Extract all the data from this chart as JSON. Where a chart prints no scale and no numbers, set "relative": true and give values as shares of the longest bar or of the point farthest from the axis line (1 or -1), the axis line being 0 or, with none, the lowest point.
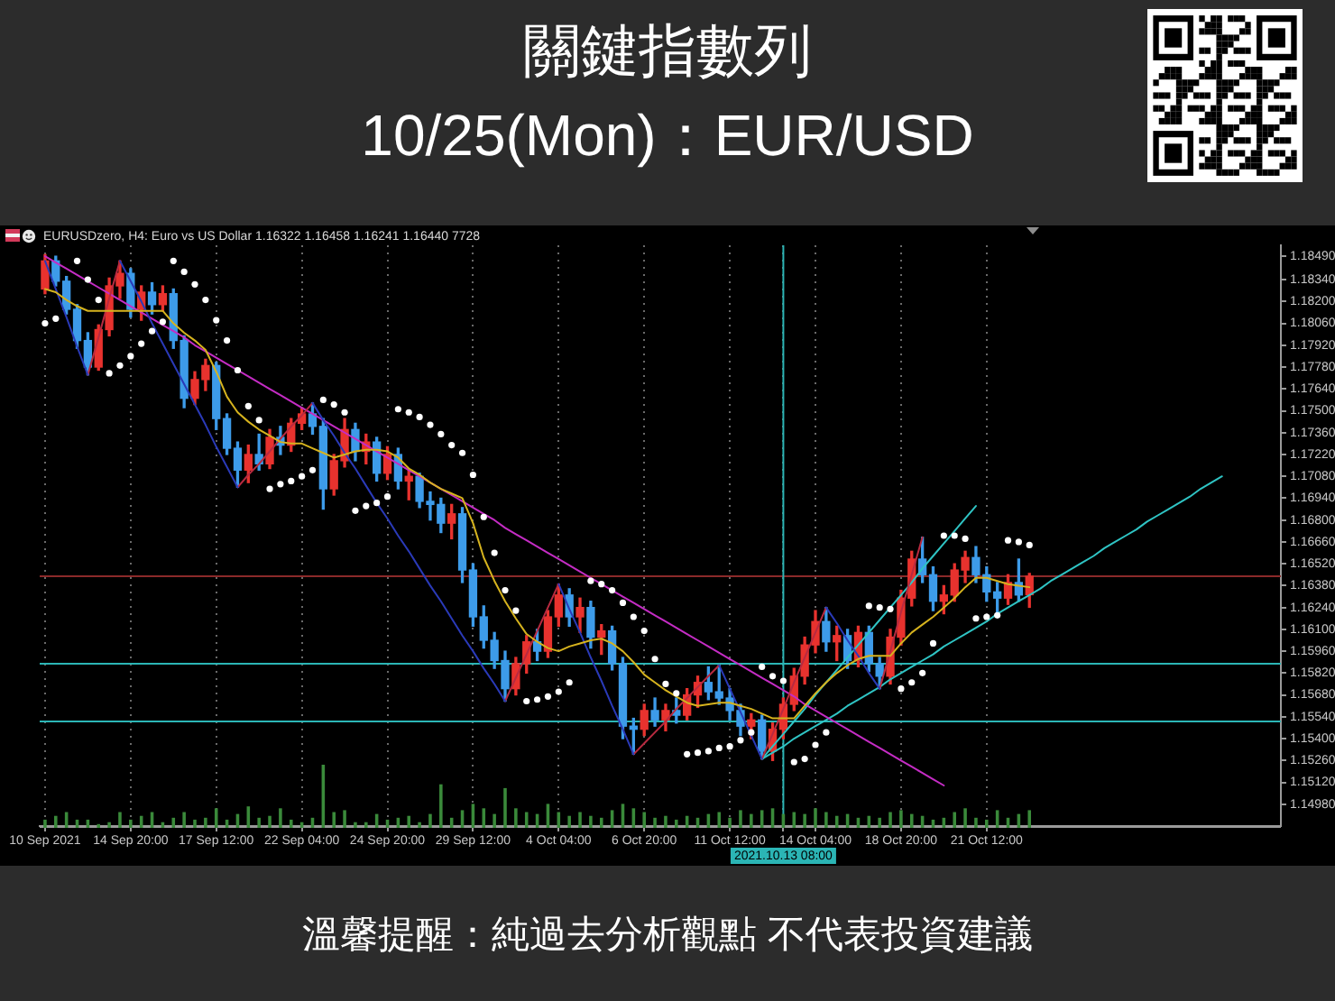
{
  "chart_data": [
    {
      "type": "candlestick",
      "title": "關鍵指數列",
      "subtitle": "10/25(Mon)：EUR/USD",
      "annotations": [
        "EURUSDzero, H4: Euro vs US Dollar 1.16322 1.16458 1.16241 1.16440 7728",
        "溫馨提醒：純過去分析觀點 不代表投資建議"
      ],
      "categories": [
        "10 Sep 2021",
        null,
        null,
        null,
        null,
        null,
        null,
        null,
        "14 Sep 20:00",
        null,
        null,
        null,
        null,
        null,
        null,
        null,
        "17 Sep 12:00",
        null,
        null,
        null,
        null,
        null,
        null,
        null,
        "22 Sep 04:00",
        null,
        null,
        null,
        null,
        null,
        null,
        null,
        "24 Sep 20:00",
        null,
        null,
        null,
        null,
        null,
        null,
        null,
        "29 Sep 12:00",
        null,
        null,
        null,
        null,
        null,
        null,
        null,
        "4 Oct 04:00",
        null,
        null,
        null,
        null,
        null,
        null,
        null,
        "6 Oct 20:00",
        null,
        null,
        null,
        null,
        null,
        null,
        null,
        "11 Oct 12:00",
        null,
        null,
        null,
        null,
        "2021.10.13 08:00",
        null,
        null,
        "14 Oct 04:00",
        null,
        null,
        null,
        null,
        null,
        null,
        null,
        "18 Oct 20:00",
        null,
        null,
        null,
        null,
        null,
        null,
        null,
        "21 Oct 12:00",
        null,
        null,
        null,
        null,
        null,
        null,
        null,
        null,
        null,
        null,
        null,
        null,
        null,
        null,
        null,
        null,
        null,
        null,
        null,
        null,
        null,
        null,
        null,
        null,
        null,
        null,
        null
      ],
      "series": [
        {
          "type": "candlestick",
          "ohlc": [
            [
              1.1828,
              1.185,
              1.1825,
              1.1846
            ],
            [
              1.1846,
              1.1849,
              1.183,
              1.1833
            ],
            [
              1.1833,
              1.1836,
              1.1812,
              1.1815
            ],
            [
              1.1815,
              1.1818,
              1.179,
              1.1795
            ],
            [
              1.1795,
              1.18,
              1.1773,
              1.1778
            ],
            [
              1.1778,
              1.1805,
              1.1776,
              1.1802
            ],
            [
              1.1802,
              1.1835,
              1.1798,
              1.183
            ],
            [
              1.183,
              1.1846,
              1.1822,
              1.1838
            ],
            [
              1.1838,
              1.1841,
              1.181,
              1.1815
            ],
            [
              1.1815,
              1.183,
              1.1808,
              1.1826
            ],
            [
              1.1826,
              1.1832,
              1.1812,
              1.1818
            ],
            [
              1.1818,
              1.183,
              1.1814,
              1.1825
            ],
            [
              1.1825,
              1.1828,
              1.179,
              1.1795
            ],
            [
              1.1795,
              1.1798,
              1.1752,
              1.1758
            ],
            [
              1.1758,
              1.1775,
              1.1754,
              1.177
            ],
            [
              1.177,
              1.1783,
              1.1763,
              1.1779
            ],
            [
              1.1779,
              1.1781,
              1.1738,
              1.1745
            ],
            [
              1.1745,
              1.1748,
              1.1722,
              1.1726
            ],
            [
              1.1726,
              1.173,
              1.1701,
              1.1712
            ],
            [
              1.1712,
              1.1728,
              1.1704,
              1.1722
            ],
            [
              1.1722,
              1.1735,
              1.1712,
              1.1716
            ],
            [
              1.1716,
              1.1738,
              1.1713,
              1.1733
            ],
            [
              1.1733,
              1.174,
              1.1722,
              1.1728
            ],
            [
              1.1728,
              1.1745,
              1.1724,
              1.1742
            ],
            [
              1.1742,
              1.1752,
              1.1738,
              1.1748
            ],
            [
              1.1748,
              1.1755,
              1.1735,
              1.174
            ],
            [
              1.174,
              1.1745,
              1.1687,
              1.17
            ],
            [
              1.17,
              1.1722,
              1.1696,
              1.1718
            ],
            [
              1.1718,
              1.1745,
              1.1714,
              1.1738
            ],
            [
              1.1738,
              1.1742,
              1.1718,
              1.1724
            ],
            [
              1.1724,
              1.1735,
              1.1716,
              1.173
            ],
            [
              1.173,
              1.1733,
              1.1705,
              1.171
            ],
            [
              1.171,
              1.1727,
              1.1706,
              1.1722
            ],
            [
              1.1722,
              1.1726,
              1.17,
              1.1705
            ],
            [
              1.1705,
              1.1712,
              1.1693,
              1.1708
            ],
            [
              1.1708,
              1.171,
              1.1688,
              1.1692
            ],
            [
              1.1692,
              1.1698,
              1.168,
              1.169
            ],
            [
              1.169,
              1.1694,
              1.1672,
              1.1678
            ],
            [
              1.1678,
              1.169,
              1.1668,
              1.1684
            ],
            [
              1.1684,
              1.1688,
              1.164,
              1.1648
            ],
            [
              1.1648,
              1.1652,
              1.1612,
              1.1618
            ],
            [
              1.1618,
              1.1625,
              1.1598,
              1.1603
            ],
            [
              1.1603,
              1.1608,
              1.1585,
              1.159
            ],
            [
              1.159,
              1.1596,
              1.1564,
              1.1572
            ],
            [
              1.1572,
              1.1592,
              1.1568,
              1.1588
            ],
            [
              1.1588,
              1.1606,
              1.1582,
              1.1602
            ],
            [
              1.1602,
              1.161,
              1.159,
              1.1596
            ],
            [
              1.1596,
              1.1622,
              1.1592,
              1.1618
            ],
            [
              1.1618,
              1.1639,
              1.1612,
              1.1632
            ],
            [
              1.1632,
              1.1636,
              1.1612,
              1.1618
            ],
            [
              1.1618,
              1.163,
              1.1608,
              1.1624
            ],
            [
              1.1624,
              1.1628,
              1.1598,
              1.1605
            ],
            [
              1.1605,
              1.1613,
              1.1594,
              1.1609
            ],
            [
              1.1609,
              1.1612,
              1.1584,
              1.1588
            ],
            [
              1.1588,
              1.1592,
              1.154,
              1.1548
            ],
            [
              1.1548,
              1.1553,
              1.153,
              1.1546
            ],
            [
              1.1546,
              1.1562,
              1.1542,
              1.1558
            ],
            [
              1.1558,
              1.1566,
              1.1548,
              1.1552
            ],
            [
              1.1552,
              1.1562,
              1.1545,
              1.1558
            ],
            [
              1.1558,
              1.1566,
              1.155,
              1.1555
            ],
            [
              1.1555,
              1.1572,
              1.1552,
              1.1568
            ],
            [
              1.1568,
              1.158,
              1.156,
              1.1576
            ],
            [
              1.1576,
              1.1586,
              1.1565,
              1.157
            ],
            [
              1.157,
              1.1587,
              1.1562,
              1.1566
            ],
            [
              1.1566,
              1.1572,
              1.1552,
              1.1558
            ],
            [
              1.1558,
              1.1562,
              1.1542,
              1.1548
            ],
            [
              1.1548,
              1.1556,
              1.154,
              1.1552
            ],
            [
              1.1552,
              1.1555,
              1.1527,
              1.1532
            ],
            [
              1.1532,
              1.155,
              1.1526,
              1.1546
            ],
            [
              1.1546,
              1.1566,
              1.154,
              1.1562
            ],
            [
              1.1562,
              1.1585,
              1.1558,
              1.158
            ],
            [
              1.158,
              1.1605,
              1.1575,
              1.16
            ],
            [
              1.16,
              1.1622,
              1.1595,
              1.1615
            ],
            [
              1.1615,
              1.1624,
              1.1596,
              1.1602
            ],
            [
              1.1602,
              1.1612,
              1.159,
              1.1606
            ],
            [
              1.1606,
              1.161,
              1.1585,
              1.159
            ],
            [
              1.159,
              1.1612,
              1.1586,
              1.1608
            ],
            [
              1.1608,
              1.1612,
              1.1583,
              1.1588
            ],
            [
              1.1588,
              1.1592,
              1.1572,
              1.158
            ],
            [
              1.158,
              1.161,
              1.1575,
              1.1605
            ],
            [
              1.1605,
              1.1635,
              1.16,
              1.163
            ],
            [
              1.163,
              1.166,
              1.1625,
              1.1655
            ],
            [
              1.1655,
              1.1669,
              1.164,
              1.1645
            ],
            [
              1.1645,
              1.165,
              1.1622,
              1.1628
            ],
            [
              1.1628,
              1.1638,
              1.162,
              1.1632
            ],
            [
              1.1632,
              1.1652,
              1.1628,
              1.1648
            ],
            [
              1.1648,
              1.166,
              1.164,
              1.1656
            ],
            [
              1.1656,
              1.1663,
              1.164,
              1.1645
            ],
            [
              1.1645,
              1.165,
              1.1628,
              1.1634
            ],
            [
              1.1634,
              1.164,
              1.1621,
              1.163
            ],
            [
              1.163,
              1.1645,
              1.1626,
              1.164
            ],
            [
              1.164,
              1.1655,
              1.1628,
              1.1632
            ],
            [
              1.16322,
              1.16458,
              1.16241,
              1.1644
            ],
            null,
            null,
            null,
            null,
            null,
            null,
            null,
            null,
            null,
            null,
            null,
            null,
            null,
            null,
            null,
            null,
            null,
            null,
            null,
            null,
            null,
            null,
            null
          ],
          "colors": [
            "#e8322e",
            "#3d9be9",
            "#3d9be9",
            "#3d9be9",
            "#3d9be9",
            "#e8322e",
            "#e8322e",
            "#e8322e",
            "#3d9be9",
            "#e8322e",
            "#3d9be9",
            "#e8322e",
            "#3d9be9",
            "#3d9be9",
            "#e8322e",
            "#e8322e",
            "#3d9be9",
            "#3d9be9",
            "#3d9be9",
            "#e8322e",
            "#3d9be9",
            "#e8322e",
            "#3d9be9",
            "#e8322e",
            "#e8322e",
            "#3d9be9",
            "#3d9be9",
            "#e8322e",
            "#e8322e",
            "#3d9be9",
            "#e8322e",
            "#3d9be9",
            "#e8322e",
            "#3d9be9",
            "#e8322e",
            "#3d9be9",
            "#3d9be9",
            "#3d9be9",
            "#e8322e",
            "#3d9be9",
            "#3d9be9",
            "#3d9be9",
            "#3d9be9",
            "#3d9be9",
            "#e8322e",
            "#e8322e",
            "#3d9be9",
            "#e8322e",
            "#e8322e",
            "#3d9be9",
            "#e8322e",
            "#3d9be9",
            "#e8322e",
            "#3d9be9",
            "#3d9be9",
            "#3d9be9",
            "#e8322e",
            "#3d9be9",
            "#e8322e",
            "#3d9be9",
            "#e8322e",
            "#e8322e",
            "#3d9be9",
            "#3d9be9",
            "#3d9be9",
            "#3d9be9",
            "#e8322e",
            "#3d9be9",
            "#e8322e",
            "#e8322e",
            "#e8322e",
            "#e8322e",
            "#e8322e",
            "#3d9be9",
            "#e8322e",
            "#3d9be9",
            "#e8322e",
            "#3d9be9",
            "#3d9be9",
            "#e8322e",
            "#e8322e",
            "#e8322e",
            "#3d9be9",
            "#3d9be9",
            "#e8322e",
            "#e8322e",
            "#e8322e",
            "#3d9be9",
            "#3d9be9",
            "#3d9be9",
            "#e8322e",
            "#3d9be9",
            "#e8322e",
            null,
            null,
            null,
            null,
            null,
            null,
            null,
            null,
            null,
            null,
            null,
            null,
            null,
            null,
            null,
            null,
            null,
            null,
            null,
            null,
            null,
            null,
            null
          ]
        },
        {
          "type": "line",
          "color": "#d6b31e",
          "values": [
            1.1828,
            1.1826,
            1.1821,
            1.1817,
            1.1814,
            1.1814,
            1.1814,
            1.1814,
            1.1814,
            1.1814,
            1.1814,
            1.1814,
            1.1806,
            1.18,
            1.1795,
            1.1789,
            1.1775,
            1.1759,
            1.1749,
            1.1743,
            1.1738,
            1.1734,
            1.173,
            1.1729,
            1.1729,
            1.1726,
            1.1723,
            1.172,
            1.1722,
            1.1724,
            1.1725,
            1.1725,
            1.1724,
            1.172,
            1.1713,
            1.1709,
            1.1704,
            1.17,
            1.1697,
            1.1694,
            1.1678,
            1.1656,
            1.1641,
            1.1628,
            1.1617,
            1.1607,
            1.1602,
            1.1598,
            1.1596,
            1.1599,
            1.1601,
            1.1603,
            1.1604,
            1.1601,
            1.1596,
            1.1589,
            1.1581,
            1.1576,
            1.1571,
            1.1567,
            1.1563,
            1.1561,
            1.1562,
            1.1563,
            1.1563,
            1.1561,
            1.1559,
            1.1556,
            1.1553,
            1.1553,
            1.1553,
            1.1561,
            1.1569,
            1.1576,
            1.1582,
            1.1587,
            1.1591,
            1.1593,
            1.1593,
            1.1593,
            1.1601,
            1.1608,
            1.1613,
            1.1618,
            1.1624,
            1.163,
            1.1637,
            1.1643,
            1.1643,
            1.1641,
            1.1639,
            1.1638,
            1.1637,
            null,
            null,
            null,
            null,
            null,
            null,
            null,
            null,
            null,
            null,
            null,
            null,
            null,
            null,
            null,
            null,
            null,
            null,
            null,
            null,
            null,
            null,
            null
          ]
        },
        {
          "type": "scatter",
          "color": "#ffffff",
          "marker": "circle",
          "values": [
            1.1806,
            1.1809,
            null,
            1.1846,
            1.1834,
            1.1821,
            1.1774,
            1.1779,
            1.1785,
            1.1793,
            1.1801,
            1.1807,
            1.1846,
            1.1839,
            1.1831,
            1.1821,
            1.1808,
            1.1795,
            1.1776,
            1.1753,
            1.1744,
            1.17,
            1.1703,
            1.1705,
            1.1708,
            1.1712,
            1.1757,
            1.1754,
            1.1749,
            1.1686,
            1.1689,
            1.1691,
            1.1695,
            1.1751,
            1.1749,
            1.1746,
            1.1741,
            1.1735,
            1.1728,
            1.1723,
            1.1709,
            1.1682,
            1.1659,
            1.1635,
            1.1622,
            1.1564,
            1.1565,
            1.1567,
            1.157,
            1.1576,
            null,
            1.1641,
            1.1639,
            1.1635,
            1.1627,
            1.1618,
            1.1609,
            1.1591,
            1.1575,
            1.1569,
            1.153,
            1.1531,
            1.1532,
            1.1534,
            1.1535,
            1.1539,
            1.1544,
            1.1586,
            1.158,
            1.1577,
            1.1525,
            1.1527,
            1.1536,
            1.1544,
            null,
            null,
            null,
            1.1625,
            1.1624,
            1.1623,
            1.1572,
            1.1576,
            1.1582,
            1.1601,
            1.167,
            1.167,
            1.1668,
            1.1617,
            1.1618,
            1.1619,
            1.1667,
            1.1666,
            1.1664,
            null,
            null,
            null,
            null,
            null,
            null,
            null,
            null,
            null,
            null,
            null,
            null,
            null,
            null,
            null,
            null,
            null,
            null,
            null,
            null,
            null,
            null,
            null
          ]
        },
        {
          "type": "line",
          "color": "#2a3ab8",
          "values": [
            1.1846,
            1.1828,
            1.181,
            1.1791,
            1.1773,
            null,
            null,
            1.1846,
            1.1833,
            1.182,
            1.1806,
            1.1793,
            1.178,
            1.1767,
            1.1754,
            1.1741,
            1.1727,
            1.1714,
            1.1701,
            null,
            null,
            null,
            null,
            null,
            null,
            1.1755,
            1.1744,
            1.1734,
            1.1723,
            1.1713,
            1.1702,
            1.1691,
            1.1681,
            1.167,
            1.166,
            1.1649,
            1.1638,
            1.1628,
            1.1617,
            1.1606,
            1.1596,
            1.1585,
            1.1575,
            1.1564,
            null,
            null,
            null,
            null,
            1.1639,
            1.1623,
            1.1608,
            1.1592,
            1.1577,
            1.1561,
            1.1546,
            1.153,
            null,
            null,
            null,
            null,
            null,
            null,
            null,
            1.1587,
            1.1572,
            1.1557,
            1.1542,
            1.1527,
            null,
            null,
            null,
            null,
            null,
            1.1624,
            1.1614,
            1.1603,
            1.1593,
            1.1582,
            1.1572,
            null,
            null,
            null,
            null,
            null,
            null,
            null,
            null,
            null,
            null,
            null,
            null,
            null,
            null,
            null,
            null,
            null,
            null,
            null,
            null,
            null,
            null,
            null,
            null,
            null,
            null,
            null,
            null,
            null,
            null,
            null,
            null,
            null,
            null,
            null,
            null,
            null
          ]
        },
        {
          "type": "line",
          "color": "#b82a40",
          "values": [
            null,
            null,
            null,
            null,
            1.1773,
            1.1797,
            1.1822,
            1.1846,
            null,
            null,
            null,
            null,
            null,
            null,
            null,
            null,
            null,
            null,
            1.1701,
            1.1709,
            1.1716,
            1.1724,
            1.1732,
            1.174,
            1.1747,
            1.1755,
            null,
            null,
            null,
            null,
            null,
            null,
            null,
            null,
            null,
            null,
            null,
            null,
            null,
            null,
            null,
            null,
            null,
            1.1564,
            1.1579,
            1.1594,
            1.1609,
            1.1624,
            1.1639,
            null,
            null,
            null,
            null,
            null,
            null,
            1.153,
            1.1537,
            1.1544,
            1.1551,
            1.1559,
            1.1566,
            1.1573,
            1.158,
            1.1587,
            null,
            null,
            null,
            1.1527,
            1.1543,
            1.1559,
            1.1576,
            1.1592,
            1.1608,
            1.1624,
            null,
            null,
            null,
            null,
            1.1572,
            1.1596,
            1.1621,
            1.1645,
            1.1669,
            null,
            null,
            null,
            null,
            null,
            null,
            null,
            null,
            null,
            null,
            null,
            null,
            null,
            null,
            null,
            null,
            null,
            null,
            null,
            null,
            null,
            null,
            null,
            null,
            null,
            null,
            null,
            null,
            null,
            null,
            null,
            null,
            null
          ]
        },
        {
          "type": "line",
          "color": "#c42cc4",
          "values": [
            1.1849,
            1.1845,
            1.1841,
            1.1837,
            1.1833,
            1.1829,
            1.1825,
            1.1821,
            1.1817,
            1.1813,
            1.1809,
            1.1805,
            1.1801,
            1.1797,
            1.1792,
            1.1788,
            1.1784,
            1.178,
            1.1776,
            1.1772,
            1.1768,
            1.1764,
            1.176,
            1.1756,
            1.1752,
            1.1748,
            1.1744,
            1.174,
            1.1736,
            1.1732,
            1.1728,
            1.1724,
            1.172,
            1.1716,
            1.1712,
            1.1708,
            1.1704,
            1.17,
            1.1696,
            1.1692,
            1.1688,
            1.1684,
            1.168,
            1.1675,
            1.1671,
            1.1667,
            1.1663,
            1.1659,
            1.1655,
            1.1651,
            1.1647,
            1.1643,
            1.1639,
            1.1635,
            1.1631,
            1.1627,
            1.1623,
            1.1619,
            1.1615,
            1.1611,
            1.1607,
            1.1603,
            1.1599,
            1.1595,
            1.1591,
            1.1587,
            1.1583,
            1.1579,
            1.1575,
            1.1571,
            1.1567,
            1.1562,
            1.1558,
            1.1554,
            1.155,
            1.1546,
            1.1542,
            1.1538,
            1.1534,
            1.153,
            1.1526,
            1.1522,
            1.1518,
            1.1514,
            1.151,
            null,
            null,
            null,
            null,
            null,
            null,
            null,
            null,
            null,
            null,
            null,
            null,
            null,
            null,
            null,
            null,
            null,
            null,
            null,
            null,
            null,
            null,
            null,
            null,
            null,
            null,
            null,
            null,
            null,
            null,
            null
          ]
        },
        {
          "type": "line",
          "color": "#2fc4c4",
          "values": [
            null,
            null,
            null,
            null,
            null,
            null,
            null,
            null,
            null,
            null,
            null,
            null,
            null,
            null,
            null,
            null,
            null,
            null,
            null,
            null,
            null,
            null,
            null,
            null,
            null,
            null,
            null,
            null,
            null,
            null,
            null,
            null,
            null,
            null,
            null,
            null,
            null,
            null,
            null,
            null,
            null,
            null,
            null,
            null,
            null,
            null,
            null,
            null,
            null,
            null,
            null,
            null,
            null,
            null,
            null,
            null,
            null,
            null,
            null,
            null,
            null,
            null,
            null,
            null,
            null,
            null,
            null,
            1.1527,
            1.1531,
            1.1535,
            1.154,
            1.1544,
            1.1548,
            1.1552,
            1.1556,
            1.1561,
            1.1565,
            1.1569,
            1.1573,
            1.1578,
            1.1582,
            1.1586,
            1.159,
            1.1594,
            1.1599,
            1.1603,
            1.1607,
            1.1611,
            1.1615,
            1.162,
            1.1624,
            1.1628,
            1.1632,
            1.1636,
            1.1641,
            1.1645,
            1.1649,
            1.1653,
            1.1657,
            1.1662,
            1.1666,
            1.167,
            1.1674,
            1.1679,
            1.1683,
            1.1687,
            1.1691,
            1.1695,
            1.17,
            1.1704,
            1.1708,
            null,
            null,
            null,
            null,
            null
          ]
        },
        {
          "type": "line",
          "color": "#2fc4c4",
          "values": [
            null,
            null,
            null,
            null,
            null,
            null,
            null,
            null,
            null,
            null,
            null,
            null,
            null,
            null,
            null,
            null,
            null,
            null,
            null,
            null,
            null,
            null,
            null,
            null,
            null,
            null,
            null,
            null,
            null,
            null,
            null,
            null,
            null,
            null,
            null,
            null,
            null,
            null,
            null,
            null,
            null,
            null,
            null,
            null,
            null,
            null,
            null,
            null,
            null,
            null,
            null,
            null,
            null,
            null,
            null,
            null,
            null,
            null,
            null,
            null,
            null,
            null,
            null,
            null,
            null,
            null,
            null,
            1.1527,
            1.1535,
            1.1543,
            1.1551,
            1.1559,
            1.1568,
            1.1576,
            1.1584,
            1.1592,
            1.16,
            1.1608,
            1.1616,
            1.1624,
            1.1632,
            1.164,
            1.1649,
            1.1657,
            1.1665,
            1.1673,
            1.1681,
            1.1689,
            null,
            null,
            null,
            null,
            null,
            null,
            null,
            null,
            null,
            null,
            null,
            null,
            null,
            null,
            null,
            null,
            null,
            null,
            null,
            null,
            null,
            null,
            null,
            null,
            null,
            null,
            null,
            null
          ]
        }
      ],
      "ylim": [
        1.1484,
        1.1856
      ],
      "yticks": [
        {
          "value": 1.1498,
          "label": "1.14980"
        },
        {
          "value": 1.1512,
          "label": "1.15120"
        },
        {
          "value": 1.1526,
          "label": "1.15260"
        },
        {
          "value": 1.154,
          "label": "1.15400"
        },
        {
          "value": 1.1554,
          "label": "1.15540"
        },
        {
          "value": 1.1568,
          "label": "1.15680"
        },
        {
          "value": 1.1582,
          "label": "1.15820"
        },
        {
          "value": 1.1596,
          "label": "1.15960"
        },
        {
          "value": 1.161,
          "label": "1.16100"
        },
        {
          "value": 1.1624,
          "label": "1.16240"
        },
        {
          "value": 1.1638,
          "label": "1.16380"
        },
        {
          "value": 1.1652,
          "label": "1.16520"
        },
        {
          "value": 1.1666,
          "label": "1.16660"
        },
        {
          "value": 1.168,
          "label": "1.16800"
        },
        {
          "value": 1.1694,
          "label": "1.16940"
        },
        {
          "value": 1.1708,
          "label": "1.17080"
        },
        {
          "value": 1.1722,
          "label": "1.17220"
        },
        {
          "value": 1.1736,
          "label": "1.17360"
        },
        {
          "value": 1.175,
          "label": "1.17500"
        },
        {
          "value": 1.1764,
          "label": "1.17640"
        },
        {
          "value": 1.1778,
          "label": "1.17780"
        },
        {
          "value": 1.1792,
          "label": "1.17920"
        },
        {
          "value": 1.1806,
          "label": "1.18060"
        },
        {
          "value": 1.182,
          "label": "1.18200"
        },
        {
          "value": 1.1834,
          "label": "1.18340"
        },
        {
          "value": 1.1849,
          "label": "1.18490"
        }
      ],
      "ref_lines": [
        {
          "axis": "y",
          "value": 1.1588,
          "color": "#2bb5b5"
        },
        {
          "axis": "y",
          "value": 1.1551,
          "color": "#2bb5b5"
        },
        {
          "axis": "y",
          "value": 1.1644,
          "color": "#8b2a2a"
        },
        {
          "axis": "x",
          "value": "2021.10.13 08:00",
          "color": "#2bb5b5"
        }
      ],
      "grid": "x"
    },
    {
      "type": "bar",
      "relative": true,
      "color": "#3a8a3a",
      "categories": [
        null,
        null,
        null,
        null,
        null,
        null,
        null,
        null,
        null,
        null,
        null,
        null,
        null,
        null,
        null,
        null,
        null,
        null,
        null,
        null,
        null,
        null,
        null,
        null,
        null,
        null,
        null,
        null,
        null,
        null,
        null,
        null,
        null,
        null,
        null,
        null,
        null,
        null,
        null,
        null,
        null,
        null,
        null,
        null,
        null,
        null,
        null,
        null,
        null,
        null,
        null,
        null,
        null,
        null,
        null,
        null,
        null,
        null,
        null,
        null,
        null,
        null,
        null,
        null,
        null,
        null,
        null,
        null,
        null,
        null,
        null,
        null,
        null,
        null,
        null,
        null,
        null,
        null,
        null,
        null,
        null,
        null,
        null,
        null,
        null,
        null,
        null,
        null,
        null,
        null,
        null,
        null,
        null,
        null,
        null,
        null,
        null,
        null,
        null,
        null,
        null,
        null,
        null,
        null,
        null,
        null,
        null,
        null,
        null,
        null,
        null,
        null,
        null,
        null,
        null,
        null
      ],
      "values": [
        0.13,
        0.19,
        0.25,
        0.13,
        0.13,
        0.06,
        0.09,
        0.25,
        0.13,
        0.19,
        0.25,
        0.09,
        0.16,
        0.25,
        0.13,
        0.16,
        0.31,
        0.13,
        0.22,
        0.34,
        0.16,
        0.19,
        0.31,
        0.13,
        0.09,
        0.16,
        1,
        0.25,
        0.28,
        0.09,
        0.09,
        0.22,
        0.13,
        0.16,
        0.19,
        0.09,
        0.22,
        0.69,
        0.16,
        0.28,
        0.38,
        0.31,
        0.22,
        0.63,
        0.31,
        0.25,
        0.22,
        0.38,
        0.25,
        0.19,
        0.25,
        0.19,
        0.16,
        0.28,
        0.38,
        0.31,
        0.25,
        0.16,
        0.19,
        0.13,
        0.19,
        0.16,
        0.22,
        0.25,
        0.16,
        0.28,
        0.22,
        0.28,
        0.31,
        0.22,
        0.25,
        0.22,
        0.31,
        0.25,
        0.19,
        0.22,
        0.16,
        0.19,
        0.16,
        0.25,
        0.28,
        0.22,
        0.19,
        0.13,
        0.16,
        0.25,
        0.31,
        0.16,
        0.13,
        0.28,
        0.16,
        0.22,
        0.28,
        null,
        null,
        null,
        null,
        null,
        null,
        null,
        null,
        null,
        null,
        null,
        null,
        null,
        null,
        null,
        null,
        null,
        null,
        null,
        null,
        null,
        null,
        null
      ]
    }
  ]
}
